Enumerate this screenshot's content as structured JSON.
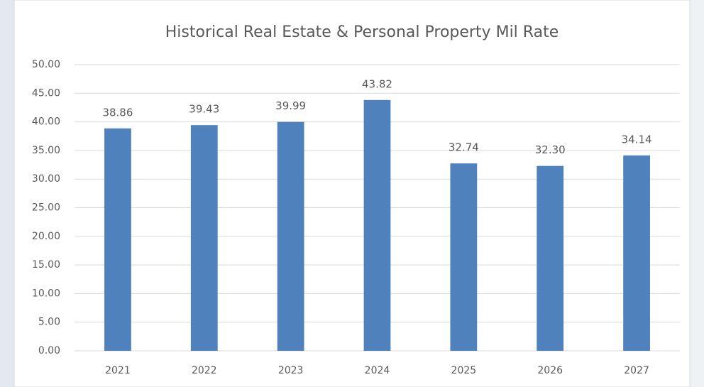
{
  "chart_data": {
    "type": "bar",
    "title": "Historical Real Estate & Personal Property Mil Rate",
    "categories": [
      "2021",
      "2022",
      "2023",
      "2024",
      "2025",
      "2026",
      "2027"
    ],
    "values": [
      38.86,
      39.43,
      39.99,
      43.82,
      32.74,
      32.3,
      34.14
    ],
    "value_labels": [
      "38.86",
      "39.43",
      "39.99",
      "43.82",
      "32.74",
      "32.30",
      "34.14"
    ],
    "color": "#4f81bd",
    "ylim": [
      0,
      50
    ],
    "yticks": [
      {
        "value": 0,
        "label": "0.00"
      },
      {
        "value": 5,
        "label": "5.00"
      },
      {
        "value": 10,
        "label": "10.00"
      },
      {
        "value": 15,
        "label": "15.00"
      },
      {
        "value": 20,
        "label": "20.00"
      },
      {
        "value": 25,
        "label": "25.00"
      },
      {
        "value": 30,
        "label": "30.00"
      },
      {
        "value": 35,
        "label": "35.00"
      },
      {
        "value": 40,
        "label": "40.00"
      },
      {
        "value": 45,
        "label": "45.00"
      },
      {
        "value": 50,
        "label": "50.00"
      }
    ],
    "grid": true
  }
}
